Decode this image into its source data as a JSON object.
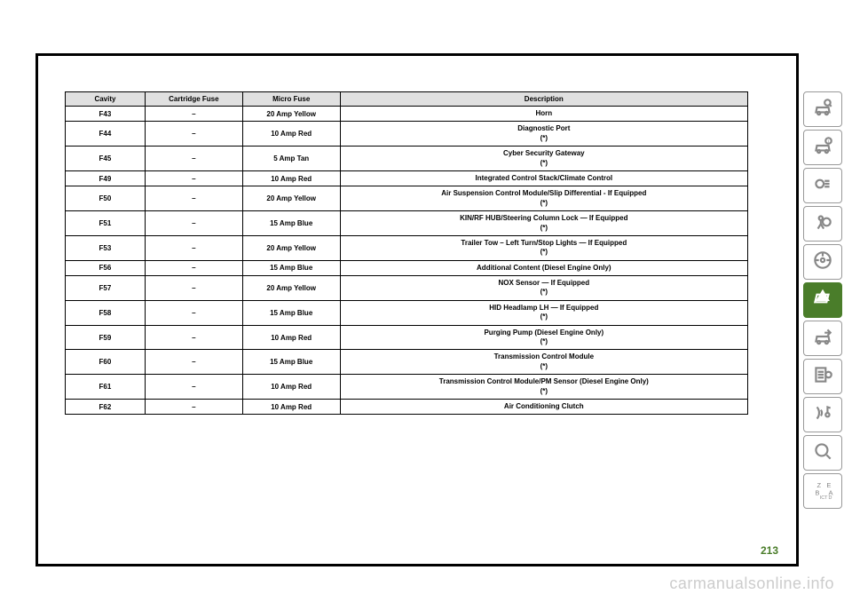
{
  "table": {
    "headers": {
      "cavity": "Cavity",
      "cartridge": "Cartridge Fuse",
      "micro": "Micro Fuse",
      "description": "Description"
    },
    "rows": [
      {
        "cavity": "F43",
        "cartridge": "–",
        "micro": "20 Amp Yellow",
        "desc": "Horn",
        "note": ""
      },
      {
        "cavity": "F44",
        "cartridge": "–",
        "micro": "10 Amp Red",
        "desc": "Diagnostic Port",
        "note": "(*)"
      },
      {
        "cavity": "F45",
        "cartridge": "–",
        "micro": "5 Amp Tan",
        "desc": "Cyber Security Gateway",
        "note": "(*)"
      },
      {
        "cavity": "F49",
        "cartridge": "–",
        "micro": "10 Amp Red",
        "desc": "Integrated Control Stack/Climate Control",
        "note": ""
      },
      {
        "cavity": "F50",
        "cartridge": "–",
        "micro": "20 Amp Yellow",
        "desc": "Air Suspension Control Module/Slip Differential - If Equipped",
        "note": "(*)"
      },
      {
        "cavity": "F51",
        "cartridge": "–",
        "micro": "15 Amp Blue",
        "desc": "KIN/RF HUB/Steering Column Lock — If Equipped",
        "note": "(*)"
      },
      {
        "cavity": "F53",
        "cartridge": "–",
        "micro": "20 Amp Yellow",
        "desc": "Trailer Tow – Left Turn/Stop Lights — If Equipped",
        "note": "(*)"
      },
      {
        "cavity": "F56",
        "cartridge": "–",
        "micro": "15 Amp Blue",
        "desc": "Additional Content (Diesel Engine Only)",
        "note": ""
      },
      {
        "cavity": "F57",
        "cartridge": "–",
        "micro": "20 Amp Yellow",
        "desc": "NOX Sensor — If Equipped",
        "note": "(*)"
      },
      {
        "cavity": "F58",
        "cartridge": "–",
        "micro": "15 Amp Blue",
        "desc": "HID Headlamp LH — If Equipped",
        "note": "(*)"
      },
      {
        "cavity": "F59",
        "cartridge": "–",
        "micro": "10 Amp Red",
        "desc": "Purging Pump (Diesel Engine Only)",
        "note": "(*)"
      },
      {
        "cavity": "F60",
        "cartridge": "–",
        "micro": "15 Amp Blue",
        "desc": "Transmission Control Module",
        "note": "(*)"
      },
      {
        "cavity": "F61",
        "cartridge": "–",
        "micro": "10 Amp Red",
        "desc": "Transmission Control Module/PM Sensor (Diesel Engine Only)",
        "note": "(*)"
      },
      {
        "cavity": "F62",
        "cartridge": "–",
        "micro": "10 Amp Red",
        "desc": "Air Conditioning Clutch",
        "note": ""
      }
    ]
  },
  "page_number": "213",
  "watermark": "carmanualsonline.info",
  "sidebar": {
    "items": [
      {
        "name": "car-search",
        "active": false
      },
      {
        "name": "car-info",
        "active": false
      },
      {
        "name": "lights",
        "active": false
      },
      {
        "name": "airbag",
        "active": false
      },
      {
        "name": "steering",
        "active": false
      },
      {
        "name": "warning",
        "active": true
      },
      {
        "name": "service",
        "active": false
      },
      {
        "name": "specs",
        "active": false
      },
      {
        "name": "media",
        "active": false
      },
      {
        "name": "search",
        "active": false
      },
      {
        "name": "index",
        "active": false
      }
    ]
  }
}
